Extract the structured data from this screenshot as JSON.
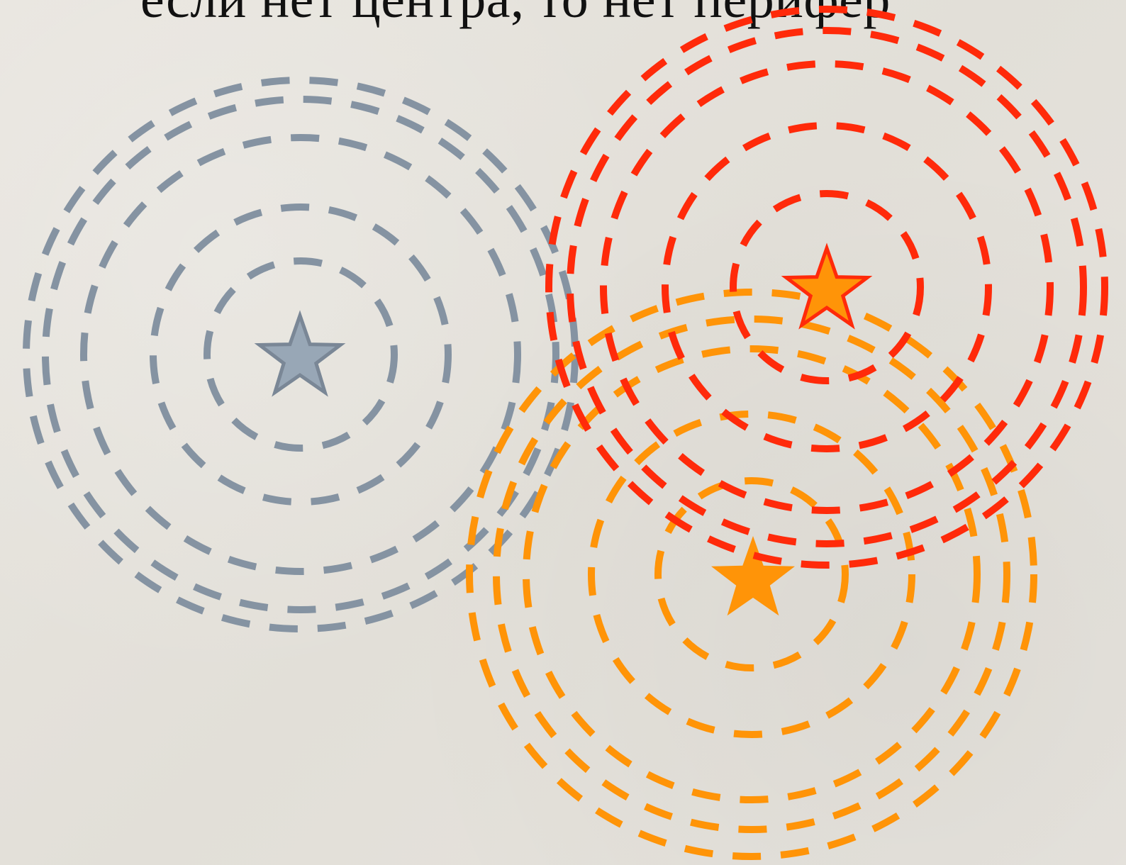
{
  "slide": {
    "caption": "если нет центра, то нет перифер"
  },
  "colors": {
    "background": "#e6e3dd",
    "gray": "#8593a2",
    "red": "#ff2a0a",
    "orange": "#ff9408",
    "gray_star_fill": "#98a7b6",
    "gray_star_stroke": "#7a8796",
    "red_star_fill": "#ff9408",
    "red_star_stroke": "#ff2a0a",
    "orange_star_fill": "#ff9408"
  },
  "icons": {
    "gray_center": "star-icon",
    "red_center": "star-icon",
    "orange_center": "star-icon"
  }
}
